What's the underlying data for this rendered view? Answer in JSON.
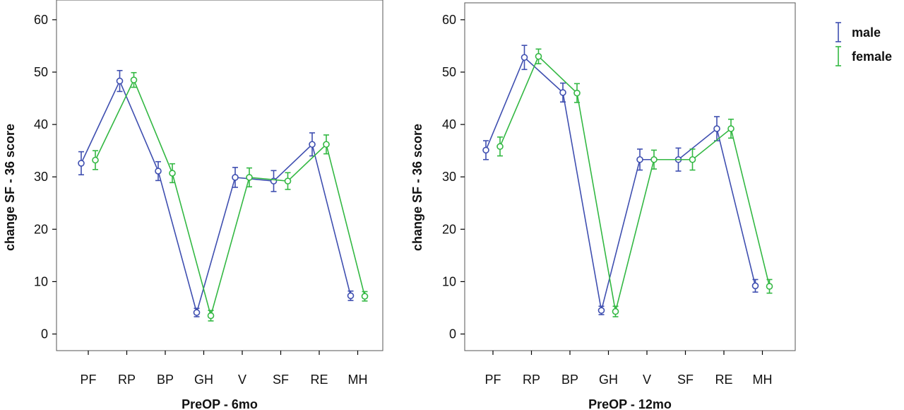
{
  "colors": {
    "male": "#3f4fb0",
    "female": "#33b843",
    "axis": "#000000",
    "frame": "#555555"
  },
  "legend": {
    "placement": "right",
    "items": [
      {
        "key": "male",
        "label": "male"
      },
      {
        "key": "female",
        "label": "female"
      }
    ]
  },
  "chart_data": [
    {
      "type": "line",
      "title": "",
      "xlabel": "PreOP - 6mo",
      "ylabel": "change SF - 36 score",
      "ylim": [
        -3,
        63
      ],
      "yticks": [
        0,
        10,
        20,
        30,
        40,
        50,
        60
      ],
      "grid": false,
      "categories": [
        "PF",
        "RP",
        "BP",
        "GH",
        "V",
        "SF",
        "RE",
        "MH"
      ],
      "series": [
        {
          "key": "male",
          "name": "male",
          "values": [
            32.6,
            48.3,
            31.1,
            4.1,
            29.9,
            29.2,
            36.2,
            7.3
          ],
          "lower": [
            30.4,
            46.3,
            29.3,
            3.3,
            28.0,
            27.2,
            34.0,
            6.4
          ],
          "upper": [
            34.8,
            50.3,
            32.9,
            4.9,
            31.8,
            31.2,
            38.4,
            8.2
          ]
        },
        {
          "key": "female",
          "name": "female",
          "values": [
            33.2,
            48.5,
            30.7,
            3.5,
            29.9,
            29.2,
            36.2,
            7.2
          ],
          "lower": [
            31.4,
            47.1,
            28.9,
            2.5,
            28.1,
            27.6,
            34.4,
            6.3
          ],
          "upper": [
            35.0,
            49.9,
            32.5,
            4.5,
            31.7,
            30.8,
            38.0,
            8.1
          ]
        }
      ]
    },
    {
      "type": "line",
      "title": "",
      "xlabel": "PreOP - 12mo",
      "ylabel": "change SF - 36 score",
      "ylim": [
        -3,
        63
      ],
      "yticks": [
        0,
        10,
        20,
        30,
        40,
        50,
        60
      ],
      "grid": false,
      "categories": [
        "PF",
        "RP",
        "BP",
        "GH",
        "V",
        "SF",
        "RE",
        "MH"
      ],
      "series": [
        {
          "key": "male",
          "name": "male",
          "values": [
            35.1,
            52.8,
            46.1,
            4.5,
            33.3,
            33.3,
            39.2,
            9.2
          ],
          "lower": [
            33.3,
            50.5,
            44.3,
            3.7,
            31.3,
            31.1,
            36.9,
            8.0
          ],
          "upper": [
            36.9,
            55.1,
            47.9,
            5.3,
            35.3,
            35.5,
            41.5,
            10.4
          ]
        },
        {
          "key": "female",
          "name": "female",
          "values": [
            35.8,
            53.0,
            46.0,
            4.3,
            33.3,
            33.3,
            39.2,
            9.1
          ],
          "lower": [
            34.0,
            51.6,
            44.2,
            3.3,
            31.5,
            31.3,
            37.4,
            7.8
          ],
          "upper": [
            37.6,
            54.4,
            47.8,
            5.3,
            35.1,
            35.3,
            41.0,
            10.4
          ]
        }
      ]
    }
  ]
}
